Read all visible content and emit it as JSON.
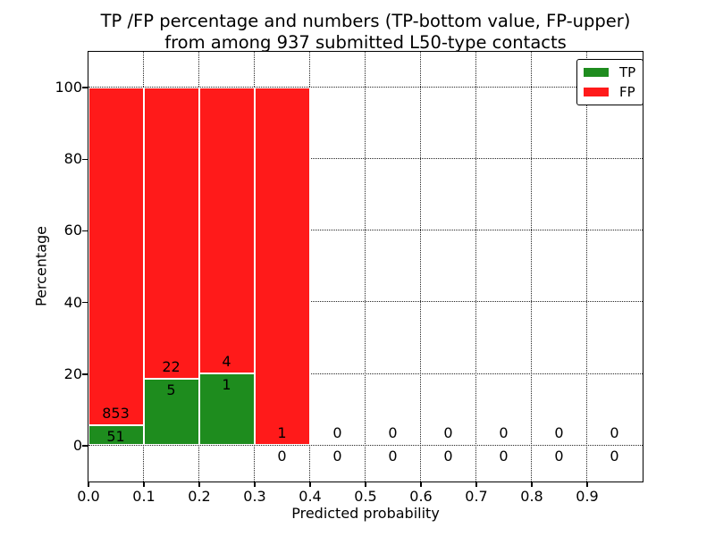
{
  "figure": {
    "title_line1": "TP /FP percentage and numbers (TP-bottom value, FP-upper)",
    "title_line2": "from among 937 submitted L50-type contacts"
  },
  "chart_data": {
    "type": "bar",
    "stacked": true,
    "title": "TP /FP percentage and numbers (TP-bottom value, FP-upper) from among 937 submitted L50-type contacts",
    "xlabel": "Predicted probability",
    "ylabel": "Percentage",
    "xlim": [
      0.0,
      1.0
    ],
    "ylim": [
      -10,
      110
    ],
    "x_ticks": [
      "0.0",
      "0.1",
      "0.2",
      "0.3",
      "0.4",
      "0.5",
      "0.6",
      "0.7",
      "0.8",
      "0.9"
    ],
    "y_ticks": [
      "0",
      "20",
      "40",
      "60",
      "80",
      "100"
    ],
    "grid": "dotted both axes",
    "legend_position": "upper right",
    "bar_unit": "each 0.1-wide bin normalized to 100%; green TP share on bottom, red FP share on top; labels show raw counts (FP above TP)",
    "bins": [
      {
        "range": [
          0.0,
          0.1
        ],
        "tp": 51,
        "fp": 853
      },
      {
        "range": [
          0.1,
          0.2
        ],
        "tp": 5,
        "fp": 22
      },
      {
        "range": [
          0.2,
          0.3
        ],
        "tp": 1,
        "fp": 4
      },
      {
        "range": [
          0.3,
          0.4
        ],
        "tp": 0,
        "fp": 1
      },
      {
        "range": [
          0.4,
          0.5
        ],
        "tp": 0,
        "fp": 0
      },
      {
        "range": [
          0.5,
          0.6
        ],
        "tp": 0,
        "fp": 0
      },
      {
        "range": [
          0.6,
          0.7
        ],
        "tp": 0,
        "fp": 0
      },
      {
        "range": [
          0.7,
          0.8
        ],
        "tp": 0,
        "fp": 0
      },
      {
        "range": [
          0.8,
          0.9
        ],
        "tp": 0,
        "fp": 0
      },
      {
        "range": [
          0.9,
          1.0
        ],
        "tp": 0,
        "fp": 0
      }
    ],
    "legend": [
      {
        "label": "TP",
        "color": "#1e8c1e"
      },
      {
        "label": "FP",
        "color": "#ff1a1a"
      }
    ],
    "colors": {
      "tp": "#1e8c1e",
      "fp": "#ff1a1a",
      "grid": "#000000",
      "text": "#000000"
    }
  }
}
